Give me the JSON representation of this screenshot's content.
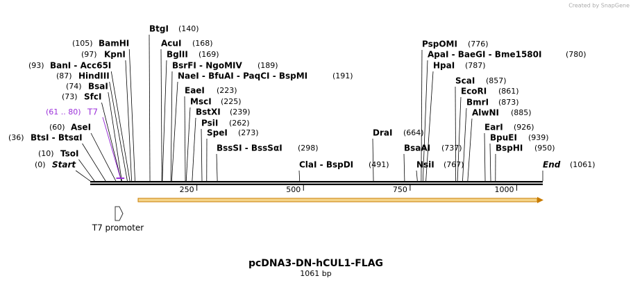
{
  "watermark": "Created by SnapGene",
  "title": "pcDNA3-DN-hCUL1-FLAG",
  "subtitle": "1061 bp",
  "ruler": {
    "length": 1061,
    "ticks": [
      250,
      500,
      750,
      1000
    ]
  },
  "primer": {
    "name": "T7",
    "label": "(61 .. 80)",
    "start": 61,
    "end": 80
  },
  "features": [
    {
      "name": "T7 promoter"
    }
  ],
  "sites": [
    {
      "name": "Start",
      "position": 0,
      "label": "(0)"
    },
    {
      "name": "TsoI",
      "position": 10,
      "label": "(10)"
    },
    {
      "name": "BtsI - BtsαI",
      "position": 36,
      "label": "(36)"
    },
    {
      "name": "AseI",
      "position": 60,
      "label": "(60)"
    },
    {
      "name": "SfcI",
      "position": 73,
      "label": "(73)"
    },
    {
      "name": "BsaI",
      "position": 74,
      "label": "(74)"
    },
    {
      "name": "HindIII",
      "position": 87,
      "label": "(87)"
    },
    {
      "name": "BanI - Acc65I",
      "position": 93,
      "label": "(93)"
    },
    {
      "name": "KpnI",
      "position": 97,
      "label": "(97)"
    },
    {
      "name": "BamHI",
      "position": 105,
      "label": "(105)"
    },
    {
      "name": "BtgI",
      "position": 140,
      "label": "(140)"
    },
    {
      "name": "AcuI",
      "position": 168,
      "label": "(168)"
    },
    {
      "name": "BglII",
      "position": 169,
      "label": "(169)"
    },
    {
      "name": "BsrFI - NgoMIV",
      "position": 189,
      "label": "(189)"
    },
    {
      "name": "NaeI - BfuAI - PaqCI - BspMI",
      "position": 191,
      "label": "(191)"
    },
    {
      "name": "EaeI",
      "position": 223,
      "label": "(223)"
    },
    {
      "name": "MscI",
      "position": 225,
      "label": "(225)"
    },
    {
      "name": "BstXI",
      "position": 239,
      "label": "(239)"
    },
    {
      "name": "PsiI",
      "position": 262,
      "label": "(262)"
    },
    {
      "name": "SpeI",
      "position": 273,
      "label": "(273)"
    },
    {
      "name": "BssSI - BssSαI",
      "position": 298,
      "label": "(298)"
    },
    {
      "name": "ClaI - BspDI",
      "position": 491,
      "label": "(491)"
    },
    {
      "name": "DraI",
      "position": 664,
      "label": "(664)"
    },
    {
      "name": "BsaAI",
      "position": 737,
      "label": "(737)"
    },
    {
      "name": "NsiI",
      "position": 767,
      "label": "(767)"
    },
    {
      "name": "PspOMI",
      "position": 776,
      "label": "(776)"
    },
    {
      "name": "ApaI - BaeGI - Bme1580I",
      "position": 780,
      "label": "(780)"
    },
    {
      "name": "HpaI",
      "position": 787,
      "label": "(787)"
    },
    {
      "name": "ScaI",
      "position": 857,
      "label": "(857)"
    },
    {
      "name": "EcoRI",
      "position": 861,
      "label": "(861)"
    },
    {
      "name": "BmrI",
      "position": 873,
      "label": "(873)"
    },
    {
      "name": "AlwNI",
      "position": 885,
      "label": "(885)"
    },
    {
      "name": "EarI",
      "position": 926,
      "label": "(926)"
    },
    {
      "name": "BpuEI",
      "position": 939,
      "label": "(939)"
    },
    {
      "name": "BspHI",
      "position": 950,
      "label": "(950)"
    },
    {
      "name": "End",
      "position": 1061,
      "label": "(1061)"
    }
  ]
}
